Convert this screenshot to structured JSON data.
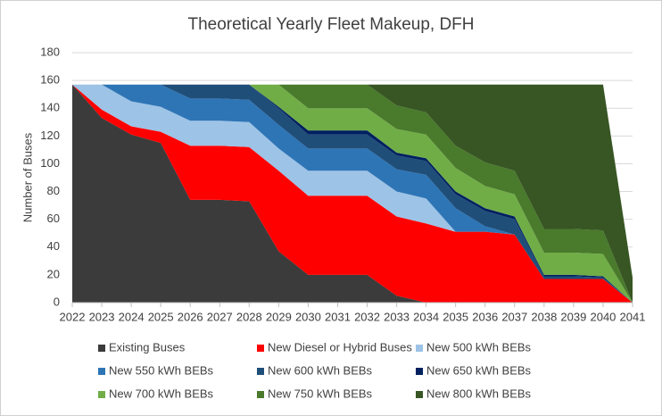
{
  "chart_data": {
    "type": "stacked_area",
    "title": "Theoretical Yearly Fleet Makeup, DFH",
    "y_label": "Number of Buses",
    "x": [
      2022,
      2023,
      2024,
      2025,
      2026,
      2027,
      2028,
      2029,
      2030,
      2031,
      2032,
      2033,
      2034,
      2035,
      2036,
      2037,
      2038,
      2039,
      2040,
      2041
    ],
    "xlim": [
      2022,
      2041
    ],
    "xticks": [
      2022,
      2023,
      2024,
      2025,
      2026,
      2027,
      2028,
      2029,
      2030,
      2031,
      2032,
      2033,
      2034,
      2035,
      2036,
      2037,
      2038,
      2039,
      2040,
      2041
    ],
    "ylim": [
      0,
      180
    ],
    "yticks": [
      0,
      20,
      40,
      60,
      80,
      100,
      120,
      140,
      160,
      180
    ],
    "grid": true,
    "legend": "bottom",
    "series": [
      {
        "name": "Existing Buses",
        "color": "#3b3b3b",
        "values": [
          157,
          133,
          121,
          115,
          74,
          74,
          73,
          37,
          20,
          20,
          20,
          5,
          0,
          0,
          0,
          0,
          0,
          0,
          0,
          0
        ]
      },
      {
        "name": "New Diesel or Hybrid Buses",
        "color": "#ff0000",
        "values": [
          0,
          6,
          6,
          8,
          39,
          39,
          39,
          58,
          57,
          57,
          57,
          57,
          57,
          51,
          51,
          49,
          17,
          17,
          17,
          0
        ]
      },
      {
        "name": "New 500 kWh BEBs",
        "color": "#9dc3e6",
        "values": [
          0,
          18,
          18,
          18,
          18,
          18,
          18,
          16,
          18,
          18,
          18,
          18,
          18,
          0,
          0,
          0,
          0,
          0,
          0,
          0
        ]
      },
      {
        "name": "New 550 kWh BEBs",
        "color": "#2e75b6",
        "values": [
          0,
          0,
          12,
          16,
          16,
          16,
          16,
          17,
          16,
          16,
          16,
          16,
          17,
          17,
          4,
          0,
          0,
          0,
          0,
          0
        ]
      },
      {
        "name": "New 600 kWh BEBs",
        "color": "#1f4e79",
        "values": [
          0,
          0,
          0,
          0,
          10,
          10,
          11,
          12,
          10,
          10,
          10,
          10,
          10,
          10,
          11,
          11,
          2,
          2,
          1,
          0
        ]
      },
      {
        "name": "New 650 kWh BEBs",
        "color": "#002060",
        "values": [
          0,
          0,
          0,
          0,
          0,
          0,
          0,
          1,
          3,
          3,
          3,
          2,
          2,
          2,
          2,
          2,
          1,
          1,
          1,
          0
        ]
      },
      {
        "name": "New 700 kWh BEBs",
        "color": "#70ad47",
        "values": [
          0,
          0,
          0,
          0,
          0,
          0,
          0,
          16,
          16,
          16,
          16,
          17,
          17,
          17,
          16,
          16,
          16,
          16,
          16,
          0
        ]
      },
      {
        "name": "New 750 kWh BEBs",
        "color": "#4a7a2c",
        "values": [
          0,
          0,
          0,
          0,
          0,
          0,
          0,
          0,
          17,
          17,
          17,
          17,
          16,
          16,
          17,
          17,
          17,
          17,
          17,
          0
        ]
      },
      {
        "name": "New 800 kWh BEBs",
        "color": "#375623",
        "values": [
          0,
          0,
          0,
          0,
          0,
          0,
          0,
          0,
          0,
          0,
          0,
          15,
          20,
          44,
          56,
          62,
          104,
          104,
          105,
          18
        ]
      }
    ]
  }
}
